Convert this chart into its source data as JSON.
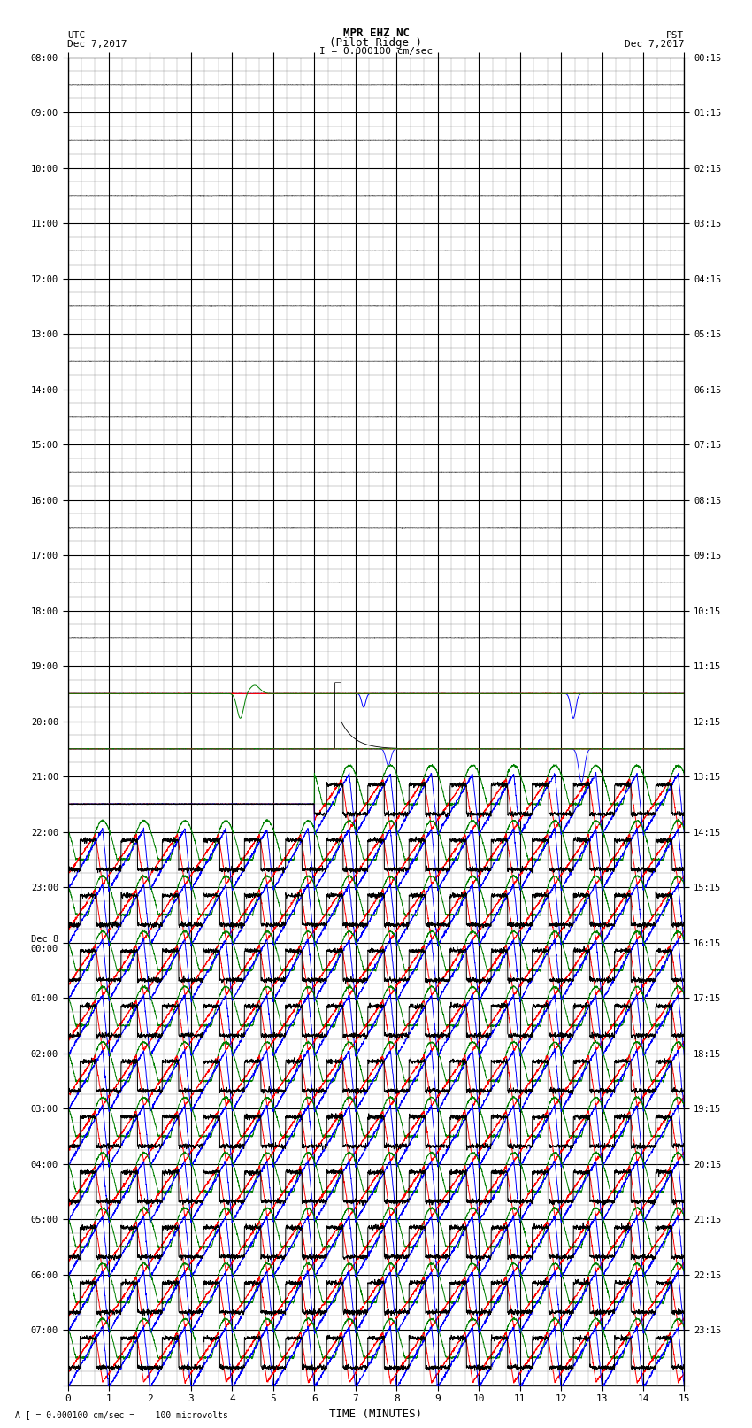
{
  "title_line1": "MPR EHZ NC",
  "title_line2": "(Pilot Ridge )",
  "title_line3": "I = 0.000100 cm/sec",
  "left_header": "UTC",
  "left_header2": "Dec 7,2017",
  "right_header": "PST",
  "right_header2": "Dec 7,2017",
  "footer": "A [ = 0.000100 cm/sec =    100 microvolts",
  "xlabel": "TIME (MINUTES)",
  "utc_labels": [
    "08:00",
    "09:00",
    "10:00",
    "11:00",
    "12:00",
    "13:00",
    "14:00",
    "15:00",
    "16:00",
    "17:00",
    "18:00",
    "19:00",
    "20:00",
    "21:00",
    "22:00",
    "23:00",
    "Dec 8\n00:00",
    "01:00",
    "02:00",
    "03:00",
    "04:00",
    "05:00",
    "06:00",
    "07:00"
  ],
  "pst_labels": [
    "00:15",
    "01:15",
    "02:15",
    "03:15",
    "04:15",
    "05:15",
    "06:15",
    "07:15",
    "08:15",
    "09:15",
    "10:15",
    "11:15",
    "12:15",
    "13:15",
    "14:15",
    "15:15",
    "16:15",
    "17:15",
    "18:15",
    "19:15",
    "20:15",
    "21:15",
    "22:15",
    "23:15"
  ],
  "num_rows": 24,
  "minutes": 15,
  "bg_color": "#ffffff",
  "major_grid_color": "#000000",
  "minor_grid_color": "#888888",
  "figsize": [
    8.5,
    16.13
  ],
  "dpi": 100
}
